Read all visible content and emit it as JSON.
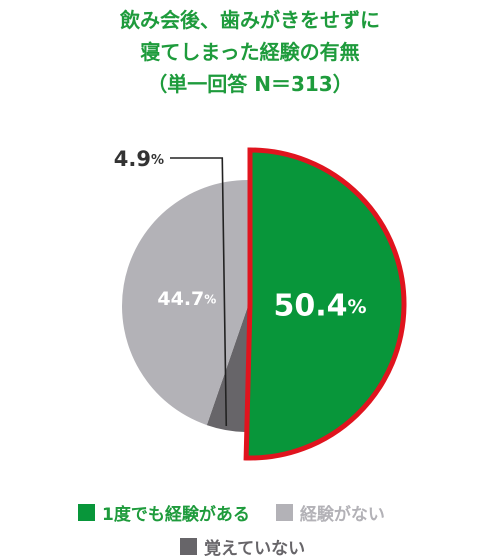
{
  "title_lines": [
    "飲み会後、歯みがきをせずに",
    "寝てしまった経験の有無",
    "（単一回答 N＝313）"
  ],
  "colors": {
    "title": "#1e9b3c",
    "experienced": "#08963a",
    "highlight": "#e0141e",
    "not_experienced": "#b3b2b7",
    "dont_remember": "#676569"
  },
  "chart_data": {
    "type": "pie",
    "title": "飲み会後、歯みがきをせずに寝てしまった経験の有無（単一回答 N＝313）",
    "unit": "%",
    "slices": [
      {
        "label": "1度でも経験がある",
        "value": 50.4,
        "text": "50.4",
        "color": "#08963a",
        "highlighted": true
      },
      {
        "label": "覚えていない",
        "value": 4.9,
        "text": "4.9",
        "color": "#676569"
      },
      {
        "label": "経験がない",
        "value": 44.7,
        "text": "44.7",
        "color": "#b3b2b7"
      }
    ],
    "legend": [
      {
        "label": "1度でも経験がある",
        "color": "#08963a"
      },
      {
        "label": "経験がない",
        "color": "#b3b2b7"
      },
      {
        "label": "覚えていない",
        "color": "#676569"
      }
    ]
  }
}
